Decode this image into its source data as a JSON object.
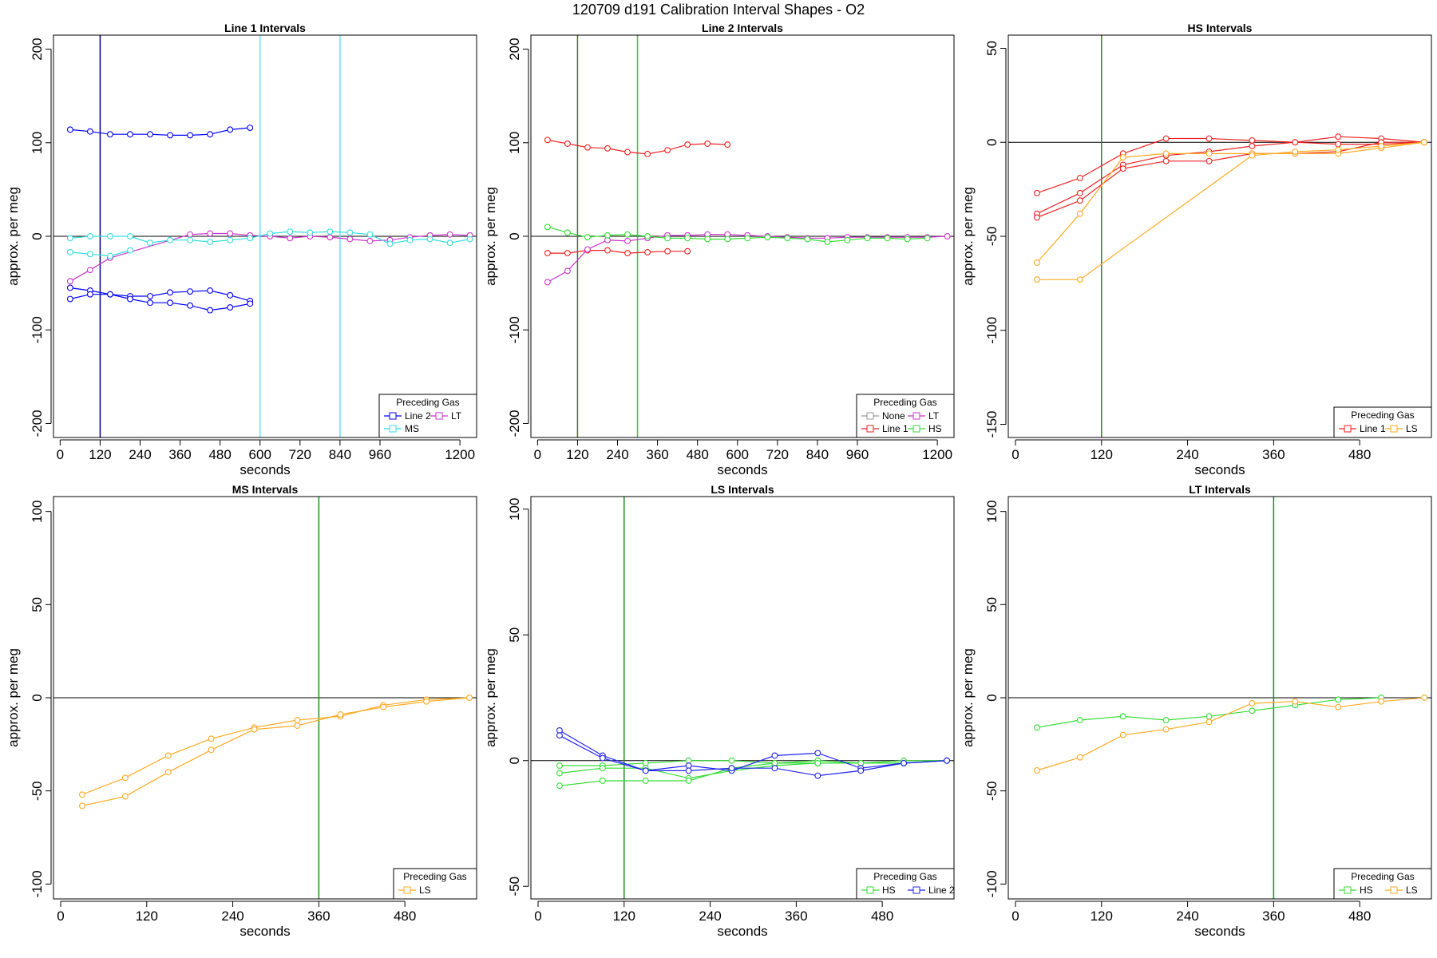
{
  "figure": {
    "title": "120709   d191   Calibration Interval Shapes - O2"
  },
  "chart_data": [
    {
      "type": "line",
      "title": "Line 1 Intervals",
      "xlabel": "seconds",
      "ylabel": "approx. per meg",
      "xlim": [
        -20,
        1250
      ],
      "ylim": [
        -215,
        215
      ],
      "xticks": [
        0,
        120,
        240,
        360,
        480,
        600,
        720,
        840,
        960,
        1200
      ],
      "yticks": [
        -200,
        -100,
        0,
        100,
        200
      ],
      "hline": 0,
      "vlines": [
        {
          "x": 120,
          "color": "#000080"
        },
        {
          "x": 600,
          "color": "#66e0ff"
        },
        {
          "x": 840,
          "color": "#66e0ff"
        }
      ],
      "legend": {
        "title": "Preceding Gas",
        "columns": 2,
        "entries": [
          {
            "name": "Line 2",
            "color": "#0000ff"
          },
          {
            "name": "LT",
            "color": "#cc33cc"
          },
          {
            "name": "MS",
            "color": "#33dddd"
          }
        ]
      },
      "series": [
        {
          "name": "Line 2",
          "color": "#0000ff",
          "x": [
            30,
            90,
            150,
            210,
            270,
            330,
            390,
            450,
            510,
            570
          ],
          "y": [
            114,
            112,
            109,
            109,
            109,
            108,
            108,
            109,
            114,
            116
          ]
        },
        {
          "name": "Line 2",
          "color": "#0000ff",
          "x": [
            30,
            90,
            150,
            210,
            270,
            330,
            390,
            450,
            510,
            570
          ],
          "y": [
            -55,
            -58,
            -62,
            -64,
            -64,
            -60,
            -59,
            -58,
            -63,
            -69
          ]
        },
        {
          "name": "Line 2",
          "color": "#0000ff",
          "x": [
            30,
            90,
            150,
            210,
            270,
            330,
            390,
            450,
            510,
            570
          ],
          "y": [
            -67,
            -62,
            -62,
            -67,
            -71,
            -71,
            -74,
            -79,
            -76,
            -72
          ]
        },
        {
          "name": "LT",
          "color": "#cc33cc",
          "x": [
            30,
            90,
            150,
            390,
            450,
            510,
            570,
            630,
            690,
            750,
            810,
            870,
            930,
            990,
            1050,
            1110,
            1170,
            1230
          ],
          "y": [
            -48,
            -36,
            -23,
            2,
            3,
            3,
            1,
            0,
            -2,
            0,
            -1,
            -3,
            -5,
            -4,
            -1,
            1,
            2,
            1
          ]
        },
        {
          "name": "MS",
          "color": "#33dddd",
          "x": [
            30,
            90,
            150,
            210,
            270,
            330,
            390,
            450,
            510,
            570,
            630,
            690,
            750,
            810,
            870,
            930,
            990,
            1050,
            1110,
            1170,
            1230
          ],
          "y": [
            -2,
            0,
            0,
            0,
            -7,
            -4,
            -4,
            -6,
            -4,
            -2,
            3,
            5,
            4,
            5,
            4,
            2,
            -8,
            -4,
            -3,
            -7,
            -3
          ]
        },
        {
          "name": "MS",
          "color": "#33dddd",
          "x": [
            30,
            90,
            150,
            210
          ],
          "y": [
            -17,
            -19,
            -21,
            -15
          ]
        }
      ]
    },
    {
      "type": "line",
      "title": "Line 2 Intervals",
      "xlabel": "seconds",
      "ylabel": "approx. per meg",
      "xlim": [
        -20,
        1250
      ],
      "ylim": [
        -215,
        215
      ],
      "xticks": [
        0,
        120,
        240,
        360,
        480,
        600,
        720,
        840,
        960,
        1200
      ],
      "yticks": [
        -200,
        -100,
        0,
        100,
        200
      ],
      "hline": 0,
      "vlines": [
        {
          "x": 120,
          "color": "#556b2f"
        },
        {
          "x": 300,
          "color": "#33cc33"
        }
      ],
      "legend": {
        "title": "Preceding Gas",
        "columns": 2,
        "entries": [
          {
            "name": "None",
            "color": "#999999"
          },
          {
            "name": "LT",
            "color": "#cc33cc"
          },
          {
            "name": "Line 1",
            "color": "#ee2222"
          },
          {
            "name": "HS",
            "color": "#33dd33"
          }
        ]
      },
      "series": [
        {
          "name": "Line 1",
          "color": "#ee2222",
          "x": [
            30,
            90,
            150,
            210,
            270,
            330,
            390,
            450,
            510,
            570
          ],
          "y": [
            103,
            99,
            95,
            94,
            90,
            88,
            92,
            98,
            99,
            98
          ]
        },
        {
          "name": "Line 1",
          "color": "#ee2222",
          "x": [
            30,
            90,
            150,
            210,
            270,
            330,
            390,
            450
          ],
          "y": [
            -18,
            -18,
            -15,
            -15,
            -18,
            -17,
            -16,
            -16
          ]
        },
        {
          "name": "LT",
          "color": "#cc33cc",
          "x": [
            30,
            90,
            150,
            210,
            270,
            330,
            390,
            450,
            510,
            570,
            630,
            690,
            750,
            810,
            870,
            930,
            990,
            1050,
            1110,
            1170,
            1230
          ],
          "y": [
            -49,
            -37,
            -14,
            -4,
            -5,
            -2,
            1,
            1,
            2,
            2,
            1,
            0,
            -1,
            -2,
            -2,
            -1,
            -1,
            -1,
            -1,
            -1,
            0
          ]
        },
        {
          "name": "HS",
          "color": "#33dd33",
          "x": [
            30,
            90,
            150,
            210,
            270,
            330,
            390,
            450,
            510,
            570,
            630,
            690,
            750,
            810,
            870,
            930,
            990,
            1050,
            1110,
            1170
          ],
          "y": [
            10,
            4,
            -1,
            1,
            2,
            0,
            -2,
            -2,
            -3,
            -3,
            -2,
            -1,
            -2,
            -3,
            -6,
            -4,
            -2,
            -2,
            -3,
            -2
          ]
        }
      ]
    },
    {
      "type": "line",
      "title": "HS Intervals",
      "xlabel": "seconds",
      "ylabel": "approx. per meg",
      "xlim": [
        -10,
        580
      ],
      "ylim": [
        -157,
        57
      ],
      "xticks": [
        0,
        120,
        240,
        360,
        480
      ],
      "yticks": [
        -150,
        -100,
        -50,
        0,
        50
      ],
      "hline": 0,
      "vlines": [
        {
          "x": 120,
          "color": "#228b22"
        }
      ],
      "legend": {
        "title": "Preceding Gas",
        "columns": 2,
        "entries": [
          {
            "name": "Line 1",
            "color": "#ee2222"
          },
          {
            "name": "LS",
            "color": "#ffaa22"
          }
        ]
      },
      "series": [
        {
          "name": "Line 1",
          "color": "#ee2222",
          "x": [
            30,
            90,
            150,
            210,
            270,
            330,
            390,
            450,
            510,
            570
          ],
          "y": [
            -27,
            -19,
            -6,
            2,
            2,
            1,
            0,
            3,
            2,
            0
          ]
        },
        {
          "name": "Line 1",
          "color": "#ee2222",
          "x": [
            30,
            90,
            150,
            210,
            270,
            330,
            390,
            450,
            510,
            570
          ],
          "y": [
            -38,
            -27,
            -12,
            -7,
            -5,
            -2,
            0,
            -1,
            -1,
            0
          ]
        },
        {
          "name": "Line 1",
          "color": "#ee2222",
          "x": [
            30,
            90,
            150,
            210,
            270,
            330,
            390,
            450,
            510,
            570
          ],
          "y": [
            -40,
            -31,
            -14,
            -10,
            -10,
            -6,
            -6,
            -5,
            0,
            0
          ]
        },
        {
          "name": "LS",
          "color": "#ffaa22",
          "x": [
            30,
            90,
            150,
            210,
            270,
            330,
            390,
            450,
            510,
            570
          ],
          "y": [
            -64,
            -38,
            -8,
            -6,
            -6,
            -6,
            -6,
            -6,
            -3,
            0
          ]
        },
        {
          "name": "LS",
          "color": "#ffaa22",
          "x": [
            30,
            90,
            330,
            390,
            450,
            510,
            570
          ],
          "y": [
            -73,
            -73,
            -7,
            -5,
            -4,
            -2,
            0
          ]
        }
      ]
    },
    {
      "type": "line",
      "title": "MS Intervals",
      "xlabel": "seconds",
      "ylabel": "approx. per meg",
      "xlim": [
        -10,
        580
      ],
      "ylim": [
        -108,
        108
      ],
      "xticks": [
        0,
        120,
        240,
        360,
        480
      ],
      "yticks": [
        -100,
        -50,
        0,
        50,
        100
      ],
      "hline": 0,
      "vlines": [
        {
          "x": 360,
          "color": "#228b22"
        }
      ],
      "legend": {
        "title": "Preceding Gas",
        "columns": 1,
        "entries": [
          {
            "name": "LS",
            "color": "#ffaa22"
          }
        ]
      },
      "series": [
        {
          "name": "LS",
          "color": "#ffaa22",
          "x": [
            30,
            90,
            150,
            210,
            270,
            330,
            390,
            450,
            510,
            570
          ],
          "y": [
            -52,
            -43,
            -31,
            -22,
            -16,
            -12,
            -10,
            -4,
            -1,
            0
          ]
        },
        {
          "name": "LS",
          "color": "#ffaa22",
          "x": [
            30,
            90,
            150,
            210,
            270,
            330,
            390,
            450,
            510,
            570
          ],
          "y": [
            -58,
            -53,
            -40,
            -28,
            -17,
            -15,
            -9,
            -5,
            -2,
            0
          ]
        }
      ]
    },
    {
      "type": "line",
      "title": "LS Intervals",
      "xlabel": "seconds",
      "ylabel": "approx. per meg",
      "xlim": [
        -10,
        580
      ],
      "ylim": [
        -55,
        105
      ],
      "xticks": [
        0,
        120,
        240,
        360,
        480
      ],
      "yticks": [
        -50,
        0,
        50,
        100
      ],
      "hline": 0,
      "vlines": [
        {
          "x": 120,
          "color": "#228b22"
        }
      ],
      "legend": {
        "title": "Preceding Gas",
        "columns": 2,
        "entries": [
          {
            "name": "HS",
            "color": "#33dd33"
          },
          {
            "name": "Line 2",
            "color": "#2222ee"
          }
        ]
      },
      "series": [
        {
          "name": "HS",
          "color": "#33dd33",
          "x": [
            30,
            90,
            150,
            210,
            270,
            330,
            390,
            450,
            510,
            570
          ],
          "y": [
            -2,
            -2,
            -1,
            0,
            0,
            -1,
            0,
            -1,
            -1,
            0
          ]
        },
        {
          "name": "HS",
          "color": "#33dd33",
          "x": [
            30,
            90,
            150,
            210,
            270,
            330,
            390,
            450,
            510,
            570
          ],
          "y": [
            -5,
            -3,
            -3,
            -7,
            -4,
            -2,
            -1,
            -1,
            0,
            0
          ]
        },
        {
          "name": "HS",
          "color": "#33dd33",
          "x": [
            30,
            90,
            150,
            210,
            270,
            330,
            390,
            450,
            510,
            570
          ],
          "y": [
            -10,
            -8,
            -8,
            -8,
            -3,
            -1,
            -1,
            -1,
            -1,
            0
          ]
        },
        {
          "name": "Line 2",
          "color": "#2222ee",
          "x": [
            30,
            90,
            150,
            210,
            270,
            330,
            390,
            450,
            510,
            570
          ],
          "y": [
            12,
            2,
            -4,
            -2,
            -4,
            2,
            3,
            -3,
            -1,
            0
          ]
        },
        {
          "name": "Line 2",
          "color": "#2222ee",
          "x": [
            30,
            90,
            150,
            210,
            270,
            330,
            390,
            450,
            510,
            570
          ],
          "y": [
            10,
            1,
            -4,
            -4,
            -3,
            -3,
            -6,
            -4,
            -1,
            0
          ]
        }
      ]
    },
    {
      "type": "line",
      "title": "LT Intervals",
      "xlabel": "seconds",
      "ylabel": "approx. per meg",
      "xlim": [
        -10,
        580
      ],
      "ylim": [
        -108,
        108
      ],
      "xticks": [
        0,
        120,
        240,
        360,
        480
      ],
      "yticks": [
        -100,
        -50,
        0,
        50,
        100
      ],
      "hline": 0,
      "vlines": [
        {
          "x": 360,
          "color": "#228b22"
        }
      ],
      "legend": {
        "title": "Preceding Gas",
        "columns": 2,
        "entries": [
          {
            "name": "HS",
            "color": "#33dd33"
          },
          {
            "name": "LS",
            "color": "#ffaa22"
          }
        ]
      },
      "series": [
        {
          "name": "HS",
          "color": "#33dd33",
          "x": [
            30,
            90,
            150,
            210,
            270,
            330,
            390,
            450,
            510
          ],
          "y": [
            -16,
            -12,
            -10,
            -12,
            -10,
            -7,
            -4,
            -1,
            0
          ]
        },
        {
          "name": "LS",
          "color": "#ffaa22",
          "x": [
            30,
            90,
            150,
            210,
            270,
            330,
            390,
            450,
            510,
            570
          ],
          "y": [
            -39,
            -32,
            -20,
            -17,
            -13,
            -3,
            -2,
            -5,
            -2,
            0
          ]
        }
      ]
    }
  ]
}
